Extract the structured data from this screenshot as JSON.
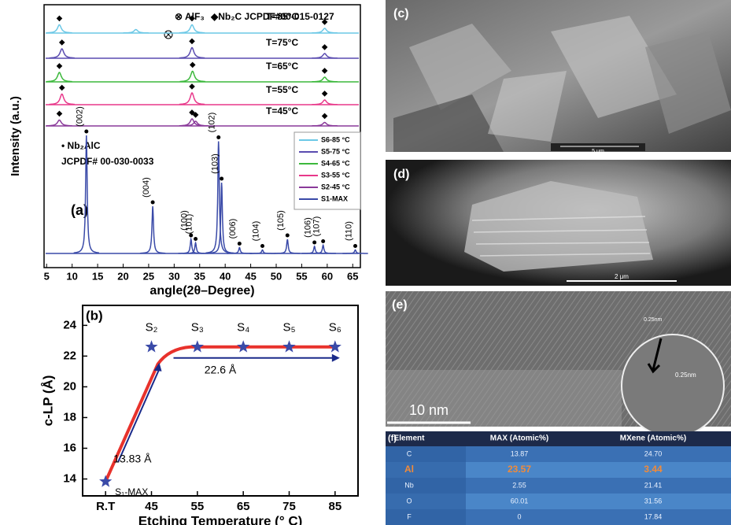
{
  "chart_data": [
    {
      "type": "spectrum",
      "title": "(a)",
      "x_label": "angle(2θ–Degree)",
      "y_label": "Intensity (a.u.)",
      "xlim": [
        4.5,
        66.5
      ],
      "xticks": [
        5,
        10,
        15,
        20,
        25,
        30,
        35,
        40,
        45,
        50,
        55,
        60,
        65
      ],
      "legend_texts": [
        "⊗ AlF₃",
        "◆Nb₂C JCPDF#00-015-0127",
        "• Nb₂AlC",
        "JCPDF# 00-030-0033"
      ],
      "annotations": [
        "T=85°C",
        "T=75°C",
        "T=65°C",
        "T=55°C",
        "T=45°C"
      ],
      "series": [
        {
          "name": "S6-85 °C",
          "color": "#6cc8e6",
          "x": [
            7.5,
            22.5,
            33.5,
            59.5
          ],
          "values": [
            7,
            3,
            7,
            4
          ]
        },
        {
          "name": "S5-75 °C",
          "color": "#5a4cb0",
          "x": [
            8,
            33.5,
            59.5
          ],
          "values": [
            8,
            9,
            4
          ]
        },
        {
          "name": "S4-65 °C",
          "color": "#3cb83c",
          "x": [
            7.5,
            33.6,
            59.5
          ],
          "values": [
            8,
            9,
            4
          ]
        },
        {
          "name": "S3-55 °C",
          "color": "#e8388a",
          "x": [
            8,
            33.5,
            59.5
          ],
          "values": [
            9,
            10,
            4
          ]
        },
        {
          "name": "S2-45 °C",
          "color": "#8a3a9a",
          "x": [
            7.5,
            33.5,
            34.2,
            59.5
          ],
          "values": [
            5,
            6,
            4,
            3
          ]
        },
        {
          "name": "S1-MAX",
          "color": "#3a4aa8",
          "x": [
            12.8,
            25.8,
            33.3,
            34.2,
            38.7,
            39.3,
            42.8,
            47.3,
            52.2,
            57.5,
            59.2,
            65.5
          ],
          "values": [
            100,
            40,
            12,
            9,
            95,
            60,
            5,
            3,
            12,
            6,
            7,
            3
          ],
          "peak_labels": [
            "(002)",
            "(004)",
            "(100)",
            "(101)",
            "(102)",
            "(103)",
            "(006)",
            "(104)",
            "(105)",
            "(106)",
            "(107)",
            "(110)"
          ]
        }
      ]
    },
    {
      "type": "line",
      "title": "(b)",
      "x_label": "Etching Temperature (° C)",
      "y_label": "c-LP (Å)",
      "categories": [
        "R.T",
        "45",
        "55",
        "65",
        "75",
        "85"
      ],
      "ylim": [
        12.9,
        25.3
      ],
      "yticks": [
        14,
        16,
        18,
        20,
        22,
        24
      ],
      "series": [
        {
          "color": "#3a4aa8",
          "values": [
            13.83,
            22.6,
            22.6,
            22.6,
            22.6,
            22.6
          ],
          "point_labels": [
            "S₁-MAX",
            "S₂",
            "S₃",
            "S₄",
            "S₅",
            "S₆"
          ]
        }
      ],
      "annotations": [
        "13.83 Å",
        "22.6 Å"
      ]
    }
  ],
  "panels": {
    "c": {
      "label": "(c)",
      "scale": "5 μm"
    },
    "d": {
      "label": "(d)",
      "scale": "2 μm"
    },
    "e": {
      "label": "(e)",
      "scale": "10 nm",
      "spacing": [
        "0.25nm",
        "0.25nm"
      ]
    }
  },
  "table": {
    "label": "(f)",
    "header": [
      "Element",
      "MAX (Atomic%)",
      "MXene (Atomic%)"
    ],
    "rows": [
      [
        "C",
        "13.87",
        "24.70"
      ],
      [
        "Al",
        "23.57",
        "3.44"
      ],
      [
        "Nb",
        "2.55",
        "21.41"
      ],
      [
        "O",
        "60.01",
        "31.56"
      ],
      [
        "F",
        "0",
        "17.84"
      ]
    ]
  }
}
